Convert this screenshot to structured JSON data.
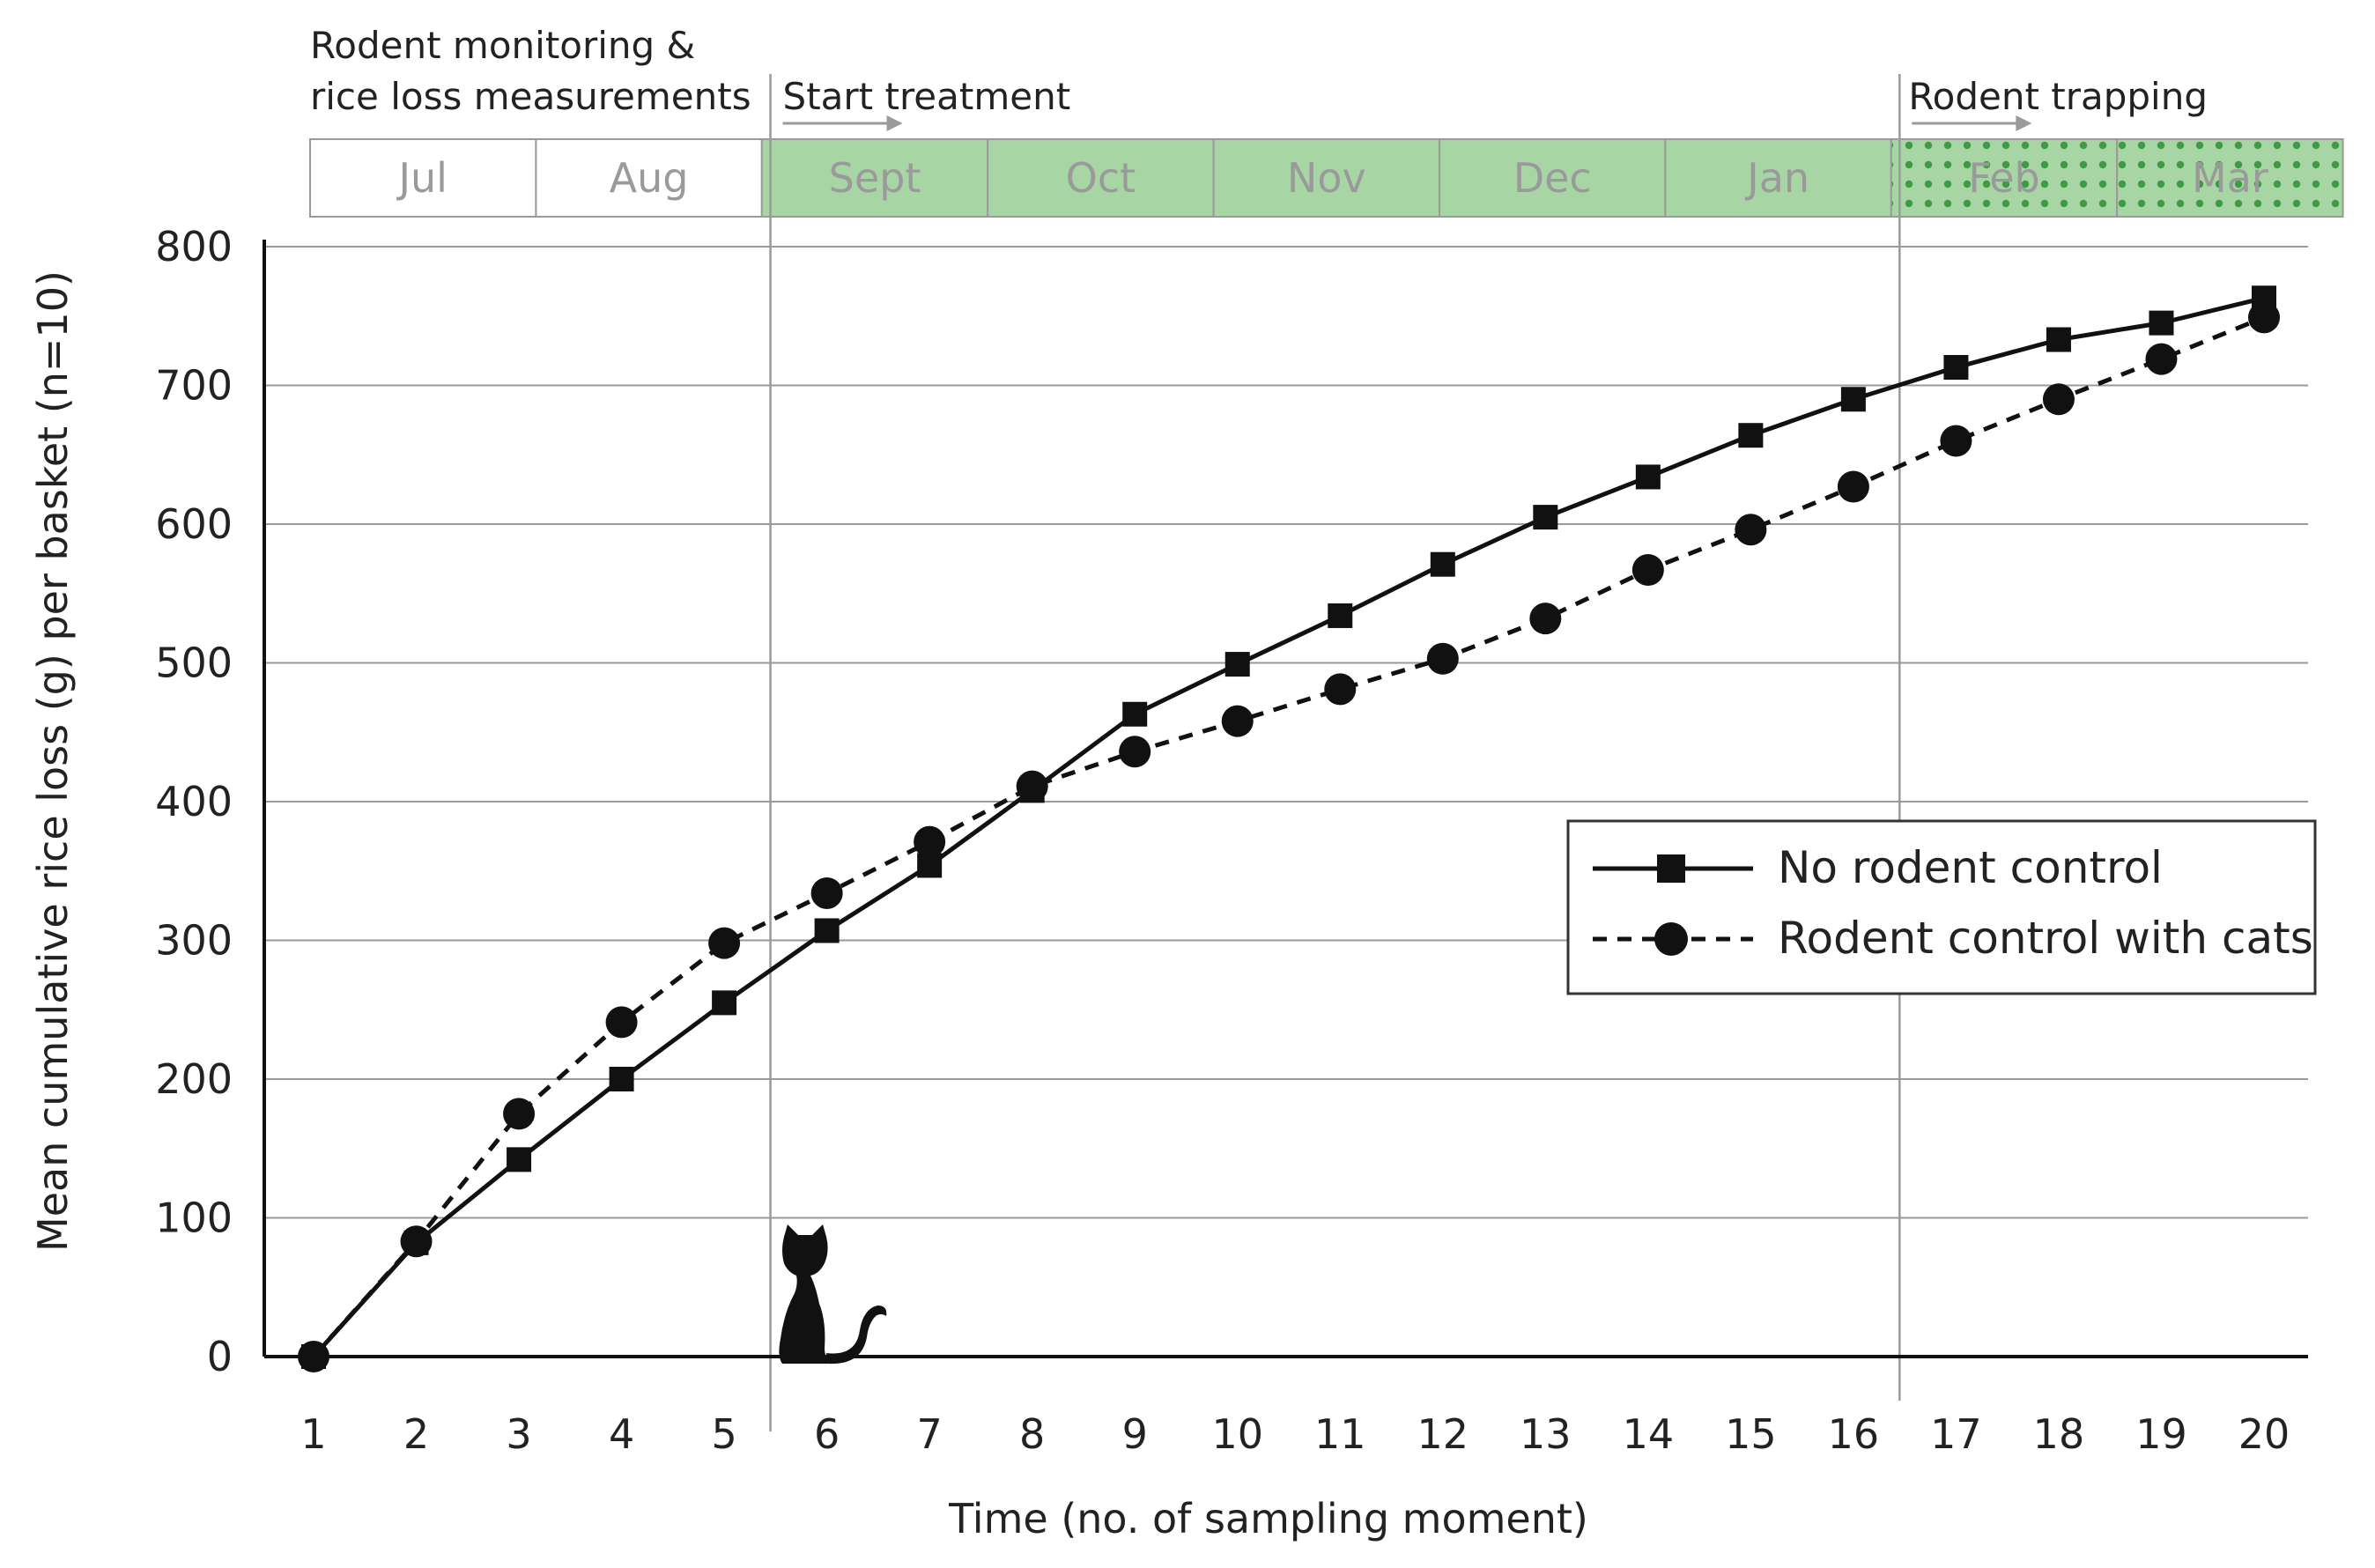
{
  "timeline": {
    "months": [
      {
        "label": "Jul",
        "phase": "monitoring"
      },
      {
        "label": "Aug",
        "phase": "monitoring"
      },
      {
        "label": "Sept",
        "phase": "treatment"
      },
      {
        "label": "Oct",
        "phase": "treatment"
      },
      {
        "label": "Nov",
        "phase": "treatment"
      },
      {
        "label": "Dec",
        "phase": "treatment"
      },
      {
        "label": "Jan",
        "phase": "treatment"
      },
      {
        "label": "Feb",
        "phase": "trapping"
      },
      {
        "label": "Mar",
        "phase": "trapping"
      }
    ],
    "phase_labels": {
      "monitoring_line1": "Rodent monitoring &",
      "monitoring_line2": "rice loss measurements",
      "treatment": "Start treatment",
      "trapping": "Rodent trapping"
    },
    "colors": {
      "treatment_fill": "#a7d5a4",
      "trapping_dots": "#3e9a45",
      "monitoring_fill": "#ffffff",
      "arrow": "#9a9a9a"
    }
  },
  "cat_icon": "cat-silhouette-icon",
  "chart_data": {
    "type": "line",
    "xlabel": "Time (no. of sampling moment)",
    "ylabel": "Mean cumulative rice loss (g) per basket (n=10)",
    "xlim": [
      1,
      20
    ],
    "ylim": [
      0,
      800
    ],
    "x_ticks": [
      1,
      2,
      3,
      4,
      5,
      6,
      7,
      8,
      9,
      10,
      11,
      12,
      13,
      14,
      15,
      16,
      17,
      18,
      19,
      20
    ],
    "y_ticks": [
      0,
      100,
      200,
      300,
      400,
      500,
      600,
      700,
      800
    ],
    "grid": "horizontal",
    "legend_position": "right-middle",
    "x": [
      1,
      2,
      3,
      4,
      5,
      6,
      7,
      8,
      9,
      10,
      11,
      12,
      13,
      14,
      15,
      16,
      17,
      18,
      19,
      20
    ],
    "series": [
      {
        "name": "No rodent control",
        "line_style": "solid",
        "marker": "square",
        "color": "#111111",
        "values": [
          0,
          82,
          142,
          200,
          255,
          307,
          354,
          408,
          463,
          499,
          534,
          571,
          605,
          634,
          664,
          690,
          713,
          733,
          745,
          763
        ]
      },
      {
        "name": "Rodent control with cats",
        "line_style": "dashed",
        "marker": "circle",
        "color": "#111111",
        "values": [
          0,
          83,
          175,
          241,
          298,
          334,
          371,
          411,
          436,
          458,
          481,
          503,
          532,
          567,
          596,
          627,
          660,
          690,
          719,
          749
        ]
      }
    ],
    "phase_boundaries": {
      "treatment_start_x": 5.45,
      "trapping_start_x": 16.45
    }
  }
}
